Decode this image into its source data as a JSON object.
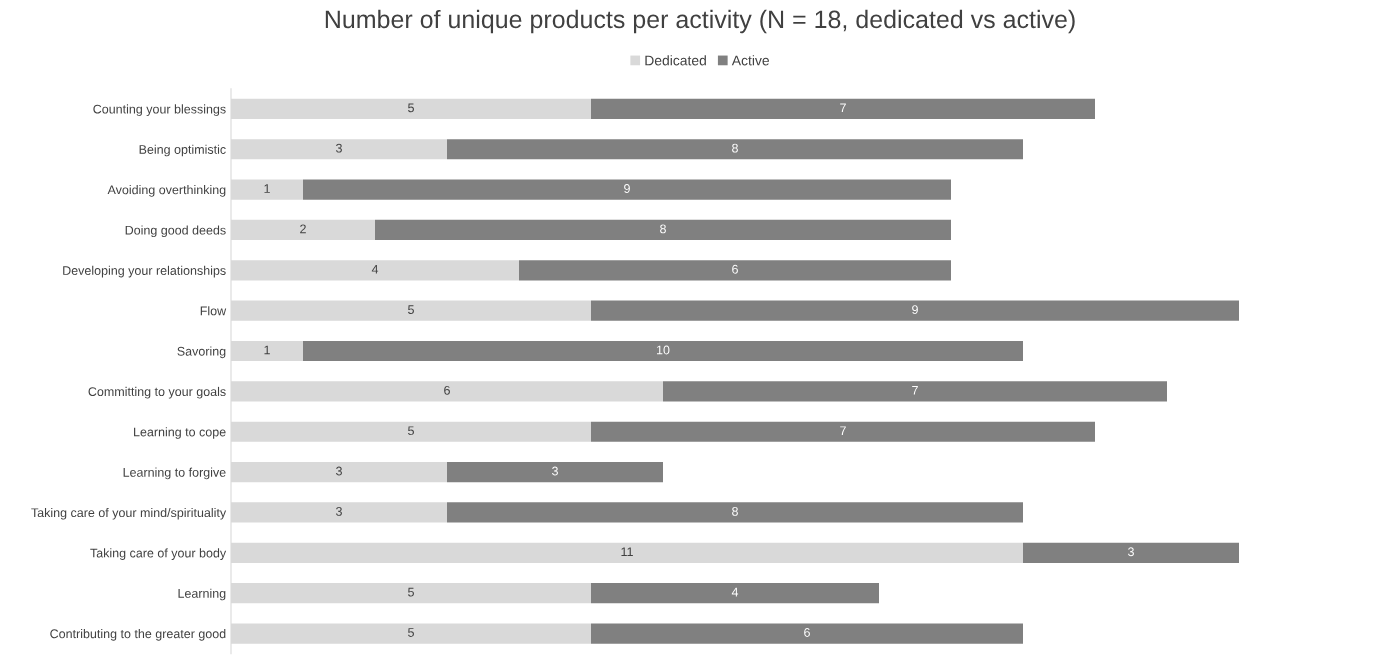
{
  "chart_data": {
    "type": "bar",
    "orientation": "horizontal",
    "stacked": true,
    "title": "Number of unique products per activity (N = 18, dedicated vs active)",
    "categories": [
      "Counting your blessings",
      "Being optimistic",
      "Avoiding overthinking",
      "Doing good deeds",
      "Developing your relationships",
      "Flow",
      "Savoring",
      "Committing to your goals",
      "Learning to cope",
      "Learning to forgive",
      "Taking care of your mind/spirituality",
      "Taking care of your body",
      "Learning",
      "Contributing to the greater good"
    ],
    "series": [
      {
        "name": "Dedicated",
        "color": "#d9d9d9",
        "values": [
          5,
          3,
          1,
          2,
          4,
          5,
          1,
          6,
          5,
          3,
          3,
          11,
          5,
          5
        ]
      },
      {
        "name": "Active",
        "color": "#808080",
        "values": [
          7,
          8,
          9,
          8,
          6,
          9,
          10,
          7,
          7,
          3,
          8,
          3,
          4,
          6
        ]
      }
    ],
    "data_labels": true,
    "legend": "top",
    "grid": false,
    "tick_labels": "y"
  }
}
